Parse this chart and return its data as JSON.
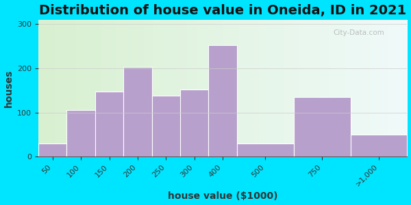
{
  "title": "Distribution of house value in Oneida, ID in 2021",
  "xlabel": "house value ($1000)",
  "ylabel": "houses",
  "bar_labels": [
    "50",
    "100",
    "150",
    "200",
    "250",
    "300",
    "400",
    "500",
    "750",
    ">1,000"
  ],
  "bar_heights": [
    30,
    105,
    148,
    203,
    138,
    152,
    253,
    30,
    135,
    50
  ],
  "bar_left_edges": [
    0,
    1,
    2,
    3,
    4,
    5,
    6,
    7,
    9,
    11
  ],
  "bar_widths": [
    1,
    1,
    1,
    1,
    1,
    1,
    1,
    2,
    2,
    2
  ],
  "bar_color": "#b8a0cc",
  "bar_edge_color": "#ffffff",
  "ylim": [
    0,
    310
  ],
  "yticks": [
    0,
    100,
    200,
    300
  ],
  "outer_bg": "#00e5ff",
  "title_fontsize": 14,
  "axis_label_fontsize": 10,
  "tick_fontsize": 8,
  "watermark": "City-Data.com"
}
